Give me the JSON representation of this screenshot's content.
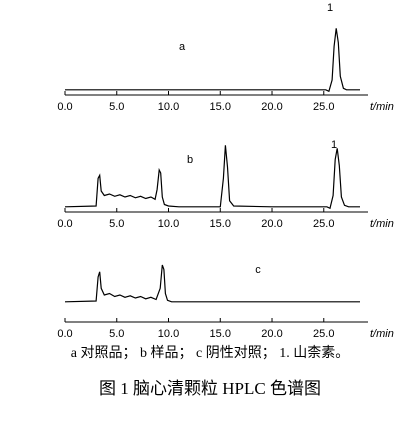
{
  "chart_data": [
    {
      "type": "line",
      "label": "a",
      "peak_label": "1",
      "x_label": "t/min",
      "color": "#000000",
      "x": [
        0,
        25.2,
        25.5,
        25.8,
        26.0,
        26.2,
        26.4,
        26.6,
        26.9,
        27.2,
        27.6,
        28.5
      ],
      "values": [
        7,
        7,
        5,
        20,
        65,
        89,
        70,
        25,
        9,
        7,
        7,
        7
      ],
      "xlim": [
        0,
        28.5
      ],
      "ylim": [
        0,
        100
      ],
      "xticks": [
        {
          "value": 0,
          "label": "0.0"
        },
        {
          "value": 5,
          "label": "5.0"
        },
        {
          "value": 10,
          "label": "10.0"
        },
        {
          "value": 15,
          "label": "15.0"
        },
        {
          "value": 20,
          "label": "20.0"
        },
        {
          "value": 25,
          "label": "25.0"
        }
      ]
    },
    {
      "type": "line",
      "label": "b",
      "peak_label": "1",
      "x_label": "t/min",
      "color": "#000000",
      "x": [
        0,
        3.0,
        3.2,
        3.35,
        3.5,
        3.8,
        4.3,
        4.8,
        5.3,
        5.8,
        6.3,
        6.8,
        7.3,
        7.8,
        8.3,
        8.7,
        8.9,
        9.1,
        9.25,
        9.4,
        9.6,
        10.0,
        11,
        15.0,
        15.3,
        15.5,
        15.7,
        15.9,
        16.3,
        20,
        25.3,
        25.6,
        25.9,
        26.1,
        26.3,
        26.5,
        26.7,
        27.0,
        27.4,
        28.5
      ],
      "values": [
        7,
        8,
        45,
        49,
        28,
        22,
        24,
        21,
        23,
        20,
        22,
        19,
        21,
        18,
        20,
        17,
        30,
        56,
        52,
        20,
        10,
        8,
        7,
        7,
        45,
        89,
        60,
        15,
        8,
        7,
        7,
        5,
        22,
        70,
        85,
        62,
        20,
        9,
        7,
        7
      ],
      "xlim": [
        0,
        28.5
      ],
      "ylim": [
        0,
        100
      ],
      "xticks": [
        {
          "value": 0,
          "label": "0.0"
        },
        {
          "value": 5,
          "label": "5.0"
        },
        {
          "value": 10,
          "label": "10.0"
        },
        {
          "value": 15,
          "label": "15.0"
        },
        {
          "value": 20,
          "label": "20.0"
        },
        {
          "value": 25,
          "label": "25.0"
        }
      ]
    },
    {
      "type": "line",
      "label": "c",
      "x_label": "t/min",
      "color": "#000000",
      "x": [
        0,
        3.0,
        3.2,
        3.35,
        3.5,
        3.8,
        4.3,
        4.8,
        5.3,
        5.8,
        6.3,
        6.8,
        7.3,
        7.8,
        8.3,
        8.8,
        9.2,
        9.4,
        9.55,
        9.7,
        9.9,
        10.3,
        12,
        20,
        28.5
      ],
      "values": [
        27,
        28,
        60,
        67,
        45,
        36,
        38,
        34,
        36,
        33,
        35,
        32,
        34,
        31,
        33,
        30,
        45,
        76,
        70,
        38,
        29,
        27,
        27,
        27,
        27
      ],
      "xlim": [
        0,
        28.5
      ],
      "ylim": [
        0,
        100
      ],
      "xticks": [
        {
          "value": 0,
          "label": "0.0"
        },
        {
          "value": 5,
          "label": "5.0"
        },
        {
          "value": 10,
          "label": "10.0"
        },
        {
          "value": 15,
          "label": "15.0"
        },
        {
          "value": 20,
          "label": "20.0"
        },
        {
          "value": 25,
          "label": "25.0"
        }
      ]
    }
  ],
  "caption": {
    "legend": "a  对照品； b  样品； c  阴性对照； 1.  山柰素。",
    "title": "图 1   脑心清颗粒 HPLC 色谱图"
  }
}
